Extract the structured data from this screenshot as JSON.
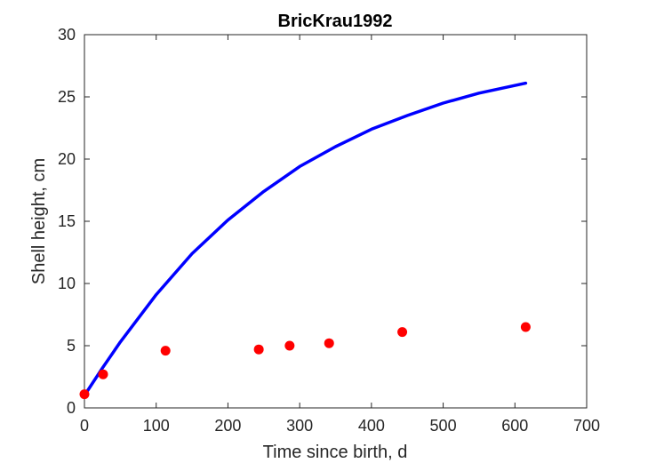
{
  "chart_data": {
    "type": "line",
    "title": "BricKrau1992",
    "xlabel": "Time since birth, d",
    "ylabel": "Shell height, cm",
    "xlim": [
      0,
      700
    ],
    "ylim": [
      0,
      30
    ],
    "xticks": [
      0,
      100,
      200,
      300,
      400,
      500,
      600,
      700
    ],
    "yticks": [
      0,
      5,
      10,
      15,
      20,
      25,
      30
    ],
    "grid": false,
    "series": [
      {
        "kind": "line",
        "color": "#0000ff",
        "x": [
          0,
          25,
          50,
          100,
          150,
          200,
          250,
          300,
          350,
          400,
          450,
          500,
          550,
          615
        ],
        "y": [
          1.0,
          3.2,
          5.3,
          9.1,
          12.4,
          15.1,
          17.4,
          19.4,
          21.0,
          22.4,
          23.5,
          24.5,
          25.3,
          26.1
        ]
      },
      {
        "kind": "scatter",
        "color": "#ff0000",
        "x": [
          0,
          26,
          113,
          243,
          286,
          341,
          443,
          615
        ],
        "y": [
          1.1,
          2.7,
          4.6,
          4.7,
          5.0,
          5.2,
          6.1,
          6.5
        ]
      }
    ]
  }
}
